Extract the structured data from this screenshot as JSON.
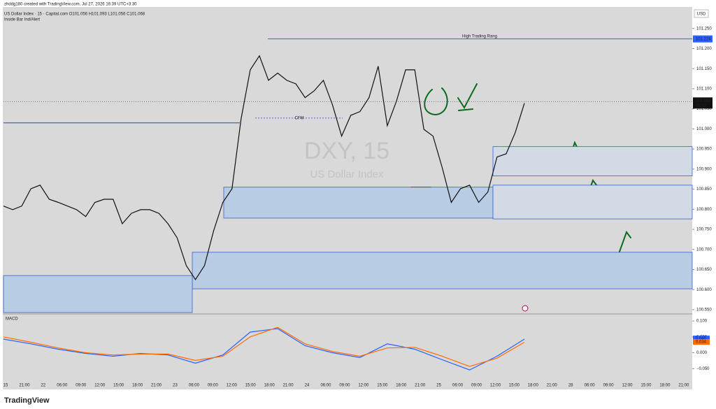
{
  "header": {
    "credit": "zhddg180 created with TradingView.com, Jul 27, 2026 16:39 UTC+3:30",
    "symbol": "US Dollar Index · 15 · Capital.com  O101.056 H101.093 L101.056 C101.068",
    "indicator": "Inside Bar Ind/Alert",
    "currency": "USD",
    "watermark": "DXY, 15",
    "watermark_sub": "US Dollar Index",
    "brand": "TradingView"
  },
  "chart_data": [
    {
      "type": "line",
      "x_labels": [
        "15",
        "21:00",
        "22",
        "06:00",
        "09:00",
        "12:00",
        "15:00",
        "18:00",
        "21:00",
        "23",
        "06:00",
        "09:00",
        "12:00",
        "15:00",
        "18:00",
        "21:00",
        "24",
        "06:00",
        "09:00",
        "12:00",
        "15:00",
        "18:00",
        "21:00",
        "25",
        "06:00",
        "09:00",
        "12:00",
        "15:00",
        "18:00",
        "21:00",
        "28",
        "06:00",
        "09:00",
        "12:00",
        "15:00",
        "18:00",
        "21:00"
      ],
      "series": [
        {
          "name": "US Dollar Index",
          "color": "#111111",
          "values": [
            100.808,
            100.799,
            100.808,
            100.851,
            100.86,
            100.825,
            100.817,
            100.808,
            100.799,
            100.782,
            100.817,
            100.825,
            100.825,
            100.764,
            100.79,
            100.799,
            100.799,
            100.79,
            100.764,
            100.729,
            100.66,
            100.625,
            100.66,
            100.747,
            100.817,
            100.851,
            101.025,
            101.147,
            101.182,
            101.121,
            101.139,
            101.121,
            101.112,
            101.078,
            101.095,
            101.121,
            101.06,
            100.982,
            101.034,
            101.043,
            101.078,
            101.156,
            101.008,
            101.069,
            101.147,
            101.147,
            100.999,
            100.982,
            100.904,
            100.817,
            100.851,
            100.86,
            100.817,
            100.843,
            100.93,
            100.938,
            100.991,
            101.064
          ]
        }
      ],
      "ylim": [
        100.543,
        101.3
      ],
      "yticks": [
        {
          "value": 101.25,
          "label": "101.250"
        },
        {
          "value": 101.2,
          "label": "101.200"
        },
        {
          "value": 101.15,
          "label": "101.150"
        },
        {
          "value": 101.1,
          "label": "101.100"
        },
        {
          "value": 101.05,
          "label": "101.050"
        },
        {
          "value": 101,
          "label": "101.000"
        },
        {
          "value": 100.95,
          "label": "100.950"
        },
        {
          "value": 100.9,
          "label": "100.900"
        },
        {
          "value": 100.85,
          "label": "100.850"
        },
        {
          "value": 100.8,
          "label": "100.800"
        },
        {
          "value": 100.75,
          "label": "100.750"
        },
        {
          "value": 100.7,
          "label": "100.700"
        },
        {
          "value": 100.65,
          "label": "100.650"
        },
        {
          "value": 100.6,
          "label": "100.600"
        },
        {
          "value": 100.55,
          "label": "100.550"
        }
      ],
      "zones": [
        {
          "top": 100.855,
          "bottom": 100.778
        },
        {
          "top": 100.693,
          "bottom": 100.602
        },
        {
          "top": 100.635,
          "bottom": 100.543
        },
        {
          "top": 100.956,
          "bottom": 100.883
        },
        {
          "top": 100.86,
          "bottom": 100.776
        }
      ],
      "high_range": 101.224,
      "high_range_label": "High Trading Rang",
      "level": 101.015,
      "cfm_level": 101.027,
      "cfm_label": "CFM",
      "last": 101.068,
      "countdown": "05:17"
    },
    {
      "type": "line",
      "title": "MACD",
      "series": [
        {
          "name": "MACD",
          "color": "#2962ff",
          "last": 0.045,
          "values": [
            0.043,
            0.028,
            0.011,
            -0.002,
            -0.011,
            -0.002,
            -0.007,
            -0.033,
            -0.007,
            0.065,
            0.076,
            0.022,
            0,
            -0.015,
            0.028,
            0.011,
            -0.022,
            -0.054,
            -0.011,
            0.043
          ]
        },
        {
          "name": "Signal",
          "color": "#ff6d00",
          "last": 0.034,
          "values": [
            0.05,
            0.033,
            0.015,
            0,
            -0.007,
            -0.004,
            -0.004,
            -0.024,
            -0.011,
            0.05,
            0.08,
            0.028,
            0.004,
            -0.011,
            0.015,
            0.017,
            -0.011,
            -0.043,
            -0.017,
            0.033
          ]
        }
      ],
      "ylim": [
        -0.089,
        0.12
      ],
      "yticks": [
        {
          "value": 0.1,
          "label": "0.100"
        },
        {
          "value": 0.05,
          "label": "0.050"
        },
        {
          "value": 0,
          "label": "0.000"
        },
        {
          "value": -0.05,
          "label": "−0.050"
        }
      ]
    }
  ]
}
